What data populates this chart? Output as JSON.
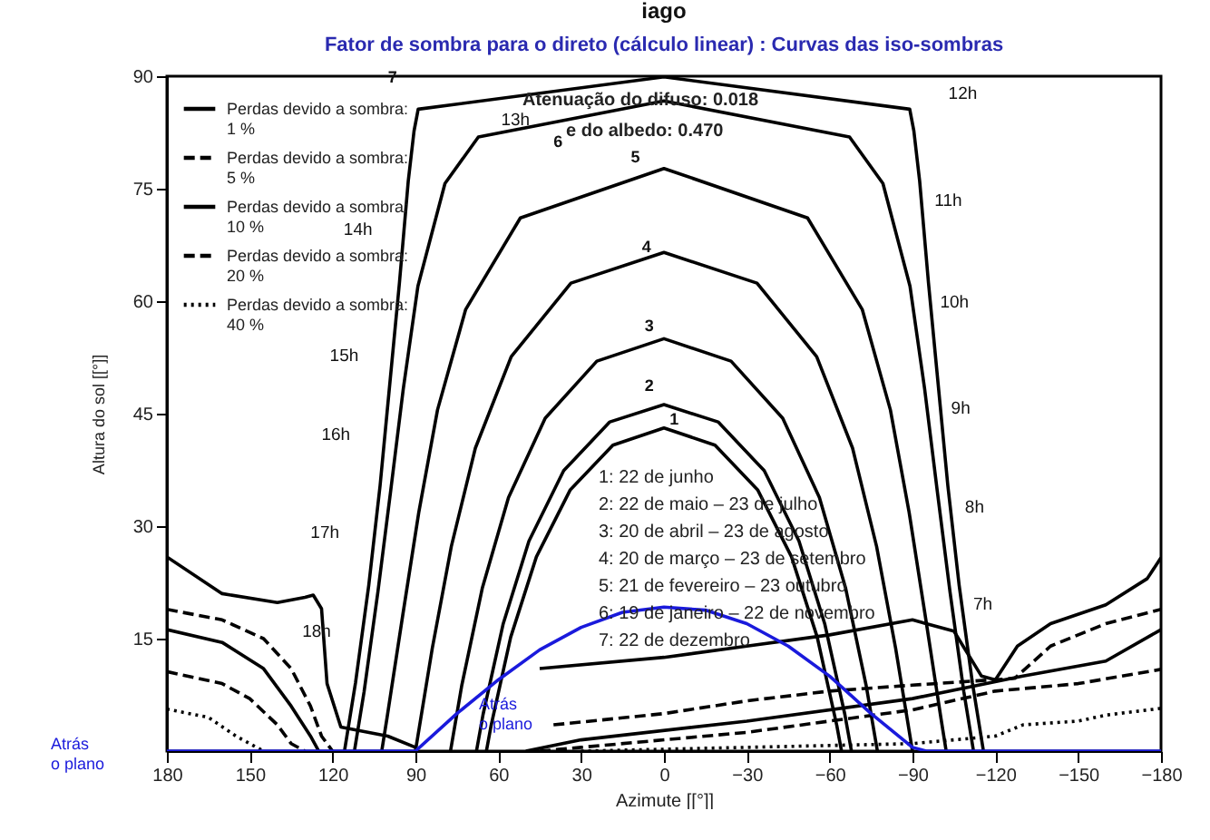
{
  "chart_data": {
    "type": "line",
    "title": "iago",
    "subtitle": "Fator de sombra para o direto (cálculo linear) : Curvas das iso-sombras",
    "xlabel": "Azimute [[°]]",
    "ylabel": "Altura do sol [[°]]",
    "xlim": [
      180,
      -180
    ],
    "xticks": [
      180,
      150,
      120,
      90,
      60,
      30,
      0,
      -30,
      -60,
      -90,
      -120,
      -150,
      -180
    ],
    "ylim": [
      0,
      90
    ],
    "yticks": [
      15,
      30,
      45,
      60,
      75,
      90
    ],
    "grid": false,
    "legend": "top left",
    "marker": "none",
    "series": [
      {
        "name": "Perdas devido a sombra: 1 %",
        "color": "#000000",
        "line_style": "solid",
        "x": [
          180,
          160,
          140,
          130,
          127,
          124,
          122,
          117,
          100,
          90,
          70,
          45,
          0,
          -30,
          -60,
          -90,
          -105,
          -115,
          -120,
          -128,
          -140,
          -160,
          -175,
          -180
        ],
        "values": [
          25.9,
          21,
          19.8,
          20.5,
          20.8,
          19,
          9,
          3.2,
          2,
          0.5,
          null,
          11,
          12.5,
          14,
          15.5,
          17.5,
          16,
          10,
          9.5,
          14,
          17,
          19.5,
          23,
          25.8
        ]
      },
      {
        "name": "Perdas devido a sombra: 5 %",
        "color": "#000000",
        "line_style": "dashed",
        "x": [
          180,
          160,
          145,
          135,
          128,
          124,
          120,
          80,
          40,
          0,
          -30,
          -60,
          -90,
          -127,
          -140,
          -160,
          -180
        ],
        "values": [
          18.9,
          17.5,
          15,
          11,
          6,
          2,
          0,
          null,
          3.5,
          5,
          6.7,
          8,
          8.8,
          9.7,
          14,
          17,
          18.9
        ]
      },
      {
        "name": "Perdas devido a sombra: 10 %",
        "color": "#000000",
        "line_style": "solid",
        "x": [
          180,
          160,
          145,
          135,
          128,
          125,
          90,
          50,
          30,
          -30,
          -90,
          -130,
          -160,
          -180
        ],
        "values": [
          16.2,
          14.5,
          11,
          6,
          2,
          0,
          null,
          0,
          1.5,
          4,
          7,
          10,
          12,
          16.2
        ]
      },
      {
        "name": "Perdas devido a sombra: 20 %",
        "color": "#000000",
        "line_style": "dashed",
        "x": [
          180,
          160,
          150,
          140,
          135,
          130,
          90,
          45,
          30,
          -30,
          -90,
          -120,
          -150,
          -180
        ],
        "values": [
          10.6,
          9,
          7,
          3.5,
          1,
          0,
          null,
          0,
          0.5,
          2.5,
          5.5,
          8,
          9,
          10.9
        ]
      },
      {
        "name": "Perdas devido a sombra: 40 %",
        "color": "#000000",
        "line_style": "dotted",
        "x": [
          180,
          165,
          155,
          145,
          90,
          30,
          -30,
          -90,
          -120,
          -130,
          -150,
          -160,
          -180
        ],
        "values": [
          5.6,
          4.5,
          2,
          0,
          null,
          0,
          0.5,
          1,
          2,
          3.5,
          4,
          4.8,
          5.7
        ]
      },
      {
        "color": "#000000",
        "line_style": "solid",
        "x": [
          64.3,
          62.6,
          55.5,
          46.2,
          34.0,
          18.5,
          0,
          -18.5,
          -34.0,
          -46.2,
          -55.5,
          -62.6,
          -64.3
        ],
        "values": [
          0,
          3.4,
          15.2,
          25.9,
          34.8,
          40.8,
          43.1,
          40.8,
          34.8,
          25.9,
          15.2,
          3.4,
          0
        ]
      },
      {
        "color": "#000000",
        "line_style": "solid",
        "x": [
          67.9,
          65.5,
          58.2,
          48.9,
          36.3,
          19.6,
          0,
          -19.6,
          -36.3,
          -48.9,
          -58.2,
          -65.5,
          -67.9
        ],
        "values": [
          0,
          4.9,
          17.0,
          28.0,
          37.4,
          43.9,
          46.2,
          43.9,
          37.4,
          28.0,
          17.0,
          4.9,
          0
        ]
      },
      {
        "color": "#000000",
        "line_style": "solid",
        "x": [
          77.3,
          73.2,
          65.8,
          56.3,
          43.0,
          24.3,
          0,
          -24.3,
          -43.0,
          -56.3,
          -65.8,
          -73.2,
          -77.3
        ],
        "values": [
          0,
          8.8,
          21.7,
          33.8,
          44.4,
          52.0,
          55.0,
          52.0,
          44.4,
          33.8,
          21.7,
          8.8,
          0
        ]
      },
      {
        "color": "#000000",
        "line_style": "solid",
        "x": [
          90,
          83.9,
          77,
          68.3,
          55.3,
          33.7,
          0,
          -33.7,
          -55.3,
          -68.3,
          -77,
          -83.9,
          -90
        ],
        "values": [
          0,
          13.7,
          27.3,
          40.4,
          52.6,
          62.4,
          66.5,
          62.4,
          52.6,
          40.4,
          27.3,
          13.7,
          0
        ]
      },
      {
        "color": "#000000",
        "line_style": "solid",
        "x": [
          102.2,
          100.3,
          94.6,
          88.8,
          82.0,
          71.8,
          52.0,
          0,
          -52.0,
          -71.8,
          -82.0,
          -88.8,
          -94.6,
          -100.3,
          -102.2
        ],
        "values": [
          0,
          4.4,
          18.1,
          31.8,
          45.5,
          58.9,
          71.1,
          77.7,
          71.1,
          58.9,
          45.5,
          31.8,
          18.1,
          4.4,
          0
        ]
      },
      {
        "color": "#000000",
        "line_style": "solid",
        "x": [
          112.1,
          108.6,
          103.6,
          99.0,
          94.4,
          89.1,
          79.3,
          67.2,
          0,
          -67.2,
          -79.3,
          -89.1,
          -94.4,
          -99.0,
          -103.6,
          -108.6,
          -112.1
        ],
        "values": [
          0,
          7.9,
          21.2,
          34.6,
          48.3,
          62.0,
          75.7,
          81.9,
          86.7,
          81.9,
          75.7,
          62.0,
          48.3,
          34.6,
          21.2,
          7.9,
          0
        ]
      },
      {
        "color": "#000000",
        "line_style": "solid",
        "x": [
          115.7,
          111.7,
          106.9,
          102.8,
          99.3,
          95.8,
          92.6,
          90.5,
          89,
          0,
          -89,
          -90.5,
          -92.6,
          -95.8,
          -99.3,
          -102.8,
          -106.9,
          -111.7,
          -115.7
        ],
        "values": [
          0,
          9.1,
          22.1,
          35.4,
          48.9,
          62.4,
          76.0,
          82.7,
          85.6,
          89.9,
          85.6,
          82.7,
          76.0,
          62.4,
          48.9,
          35.4,
          22.1,
          9.1,
          0
        ]
      },
      {
        "color": "#1a1adc",
        "line_style": "solid",
        "x": [
          180,
          90,
          75,
          60,
          45,
          30,
          15,
          0,
          -15,
          -30,
          -45,
          -60,
          -75,
          -90,
          -95,
          -180
        ],
        "values": [
          0,
          0,
          5,
          9.5,
          13.5,
          16.5,
          18.5,
          19.2,
          18.8,
          17,
          14,
          10,
          5,
          0.5,
          0,
          0
        ]
      }
    ],
    "annotations": [
      "Atenuação do difuso: 0.018",
      "e do albedo: 0.470",
      "1: 22 de junho",
      "2: 22 de maio – 23 de julho",
      "3: 20 de abril – 23 de agosto",
      "4: 20 de março – 23 de setembro",
      "5: 21 de fevereiro – 23 outubro",
      "6: 19 de janeiro – 22 de novembro",
      "7: 22 de dezembro",
      "Atrás\no plano",
      "Atrás\no plano",
      "12h",
      "11h",
      "10h",
      "9h",
      "8h",
      "7h",
      "13h",
      "14h",
      "15h",
      "16h",
      "17h",
      "18h",
      "1",
      "2",
      "3",
      "4",
      "5",
      "6",
      "7"
    ]
  }
}
